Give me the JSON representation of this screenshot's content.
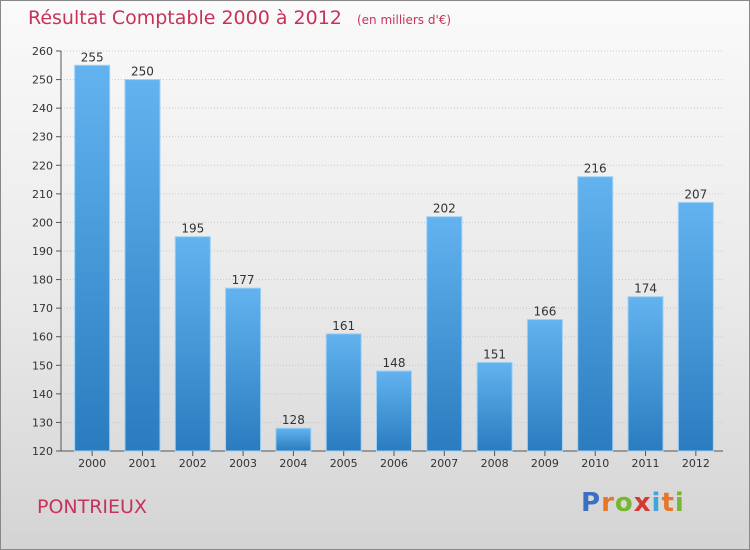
{
  "header": {
    "title": "Résultat Comptable 2000 à 2012",
    "subtitle": "(en milliers d'€)"
  },
  "footer": {
    "commune": "PONTRIEUX",
    "logo": [
      "P",
      "r",
      "o",
      "x",
      "i",
      "t",
      "i"
    ]
  },
  "colors": {
    "title": "#c8325a",
    "bar_top": "#62b3ef",
    "bar_bottom": "#2a7cbf",
    "logo": [
      "#3a6fc4",
      "#e7762a",
      "#79b72f",
      "#d43a2f",
      "#3fa5dc",
      "#e7762a",
      "#79b72f"
    ]
  },
  "chart_data": {
    "type": "bar",
    "title": "Résultat Comptable 2000 à 2012",
    "subtitle": "(en milliers d'€)",
    "categories": [
      "2000",
      "2001",
      "2002",
      "2003",
      "2004",
      "2005",
      "2006",
      "2007",
      "2008",
      "2009",
      "2010",
      "2011",
      "2012"
    ],
    "values": [
      255,
      250,
      195,
      177,
      128,
      161,
      148,
      202,
      151,
      166,
      216,
      174,
      207
    ],
    "ylim": [
      120,
      260
    ],
    "yticks": [
      120,
      130,
      140,
      150,
      160,
      170,
      180,
      190,
      200,
      210,
      220,
      230,
      240,
      250,
      260
    ],
    "grid": true,
    "xlabel": "",
    "ylabel": ""
  }
}
